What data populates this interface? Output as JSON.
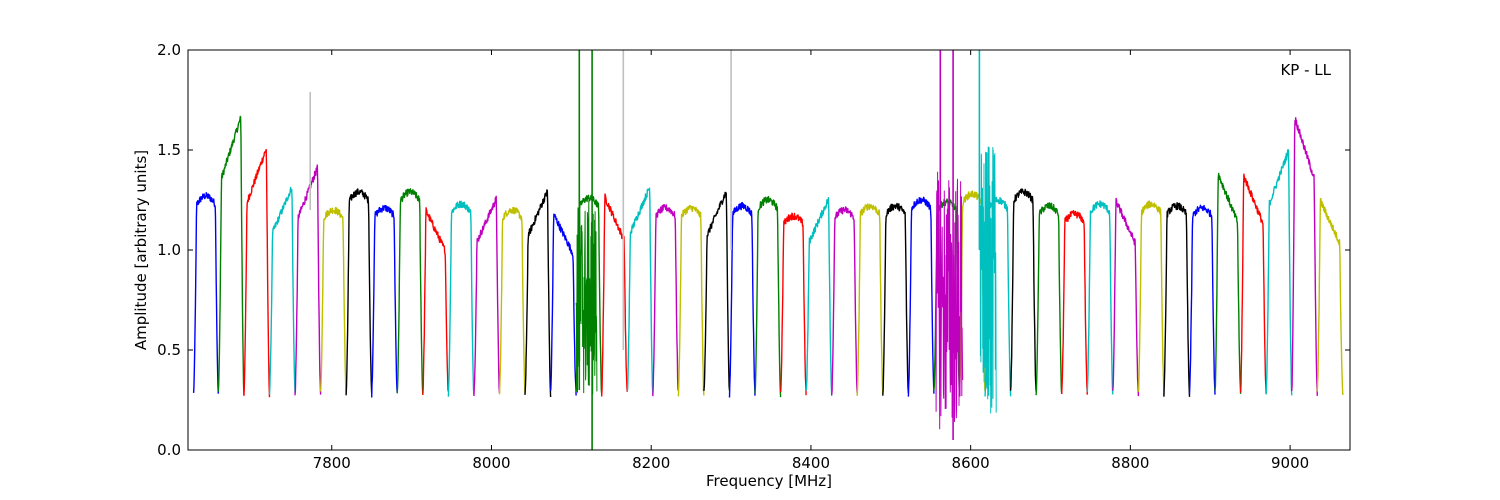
{
  "chart_data": {
    "type": "line",
    "title": "",
    "annotation": "KP - LL",
    "xlabel": "Frequency [MHz]",
    "ylabel": "Amplitude [arbitrary units]",
    "xlim": [
      7620,
      9075
    ],
    "ylim": [
      0.0,
      2.0
    ],
    "xticks": [
      7800,
      8000,
      8200,
      8400,
      8600,
      8800,
      9000
    ],
    "xtick_labels": [
      "7800",
      "8000",
      "8200",
      "8400",
      "8600",
      "8800",
      "9000"
    ],
    "yticks": [
      0.0,
      0.5,
      1.0,
      1.5,
      2.0
    ],
    "ytick_labels": [
      "0.0",
      "0.5",
      "1.0",
      "1.5",
      "2.0"
    ],
    "grid": false,
    "colors": {
      "blue": "#0000ff",
      "green": "#008000",
      "red": "#ff0000",
      "cyan": "#00bfbf",
      "magenta": "#bf00bf",
      "olive": "#bfbf00",
      "black": "#000000",
      "gray": "#bfbfbf"
    },
    "channels": [
      {
        "start": 7627,
        "end": 7658,
        "peak": 1.27,
        "shape": "flat",
        "color": "blue"
      },
      {
        "start": 7658,
        "end": 7690,
        "peak": 1.71,
        "shape": "rise",
        "color": "green"
      },
      {
        "start": 7690,
        "end": 7722,
        "peak": 1.55,
        "shape": "rise",
        "color": "red"
      },
      {
        "start": 7722,
        "end": 7754,
        "peak": 1.35,
        "shape": "rise",
        "color": "cyan"
      },
      {
        "start": 7754,
        "end": 7786,
        "peak": 1.45,
        "shape": "rise",
        "color": "magenta"
      },
      {
        "start": 7786,
        "end": 7818,
        "peak": 1.2,
        "shape": "flat",
        "color": "olive"
      },
      {
        "start": 7818,
        "end": 7850,
        "peak": 1.29,
        "shape": "flat",
        "color": "black"
      },
      {
        "start": 7850,
        "end": 7882,
        "peak": 1.21,
        "shape": "flat",
        "color": "blue"
      },
      {
        "start": 7882,
        "end": 7914,
        "peak": 1.29,
        "shape": "flat",
        "color": "green"
      },
      {
        "start": 7914,
        "end": 7946,
        "peak": 1.23,
        "shape": "fall",
        "color": "red"
      },
      {
        "start": 7946,
        "end": 7978,
        "peak": 1.23,
        "shape": "flat",
        "color": "cyan"
      },
      {
        "start": 7978,
        "end": 8010,
        "peak": 1.29,
        "shape": "rise",
        "color": "magenta"
      },
      {
        "start": 8010,
        "end": 8042,
        "peak": 1.2,
        "shape": "flat",
        "color": "olive"
      },
      {
        "start": 8042,
        "end": 8074,
        "peak": 1.33,
        "shape": "rise",
        "color": "black"
      },
      {
        "start": 8074,
        "end": 8106,
        "peak": 1.21,
        "shape": "fall",
        "color": "blue"
      },
      {
        "start": 8106,
        "end": 8138,
        "peak": 1.26,
        "shape": "flat",
        "color": "green"
      },
      {
        "start": 8138,
        "end": 8170,
        "peak": 1.3,
        "shape": "fall",
        "color": "red"
      },
      {
        "start": 8170,
        "end": 8202,
        "peak": 1.35,
        "shape": "rise",
        "color": "cyan"
      },
      {
        "start": 8202,
        "end": 8234,
        "peak": 1.21,
        "shape": "flat",
        "color": "magenta"
      },
      {
        "start": 8234,
        "end": 8266,
        "peak": 1.21,
        "shape": "flat",
        "color": "olive"
      },
      {
        "start": 8266,
        "end": 8298,
        "peak": 1.33,
        "shape": "rise",
        "color": "black"
      },
      {
        "start": 8298,
        "end": 8330,
        "peak": 1.22,
        "shape": "flat",
        "color": "blue"
      },
      {
        "start": 8330,
        "end": 8362,
        "peak": 1.25,
        "shape": "flat",
        "color": "green"
      },
      {
        "start": 8362,
        "end": 8394,
        "peak": 1.17,
        "shape": "flat",
        "color": "red"
      },
      {
        "start": 8394,
        "end": 8426,
        "peak": 1.29,
        "shape": "rise",
        "color": "cyan"
      },
      {
        "start": 8426,
        "end": 8458,
        "peak": 1.2,
        "shape": "flat",
        "color": "magenta"
      },
      {
        "start": 8458,
        "end": 8490,
        "peak": 1.22,
        "shape": "flat",
        "color": "olive"
      },
      {
        "start": 8490,
        "end": 8522,
        "peak": 1.22,
        "shape": "flat",
        "color": "black"
      },
      {
        "start": 8522,
        "end": 8554,
        "peak": 1.25,
        "shape": "flat",
        "color": "blue"
      },
      {
        "start": 8554,
        "end": 8586,
        "peak": 1.24,
        "shape": "flat",
        "color": "green"
      },
      {
        "start": 8586,
        "end": 8618,
        "peak": 1.28,
        "shape": "flat",
        "color": "olive"
      },
      {
        "start": 8618,
        "end": 8650,
        "peak": 1.25,
        "shape": "flat",
        "color": "cyan"
      },
      {
        "start": 8650,
        "end": 8682,
        "peak": 1.29,
        "shape": "flat",
        "color": "black"
      },
      {
        "start": 8682,
        "end": 8714,
        "peak": 1.22,
        "shape": "flat",
        "color": "green"
      },
      {
        "start": 8714,
        "end": 8746,
        "peak": 1.18,
        "shape": "flat",
        "color": "red"
      },
      {
        "start": 8746,
        "end": 8778,
        "peak": 1.23,
        "shape": "flat",
        "color": "cyan"
      },
      {
        "start": 8778,
        "end": 8810,
        "peak": 1.28,
        "shape": "fall",
        "color": "magenta"
      },
      {
        "start": 8810,
        "end": 8842,
        "peak": 1.23,
        "shape": "flat",
        "color": "olive"
      },
      {
        "start": 8842,
        "end": 8874,
        "peak": 1.22,
        "shape": "flat",
        "color": "black"
      },
      {
        "start": 8874,
        "end": 8906,
        "peak": 1.21,
        "shape": "flat",
        "color": "blue"
      },
      {
        "start": 8906,
        "end": 8938,
        "peak": 1.42,
        "shape": "fall",
        "color": "green"
      },
      {
        "start": 8938,
        "end": 8970,
        "peak": 1.41,
        "shape": "fall",
        "color": "red"
      },
      {
        "start": 8970,
        "end": 9002,
        "peak": 1.54,
        "shape": "rise",
        "color": "cyan"
      },
      {
        "start": 9002,
        "end": 9034,
        "peak": 1.71,
        "shape": "fall",
        "color": "magenta"
      },
      {
        "start": 9034,
        "end": 9066,
        "peak": 1.28,
        "shape": "fall",
        "color": "olive"
      }
    ],
    "spikes": [
      {
        "x": 7773,
        "y_low": 1.2,
        "y_high": 1.79,
        "color": "gray"
      },
      {
        "x": 8110,
        "y_low": 0.3,
        "y_high": 2.0,
        "color": "green"
      },
      {
        "x": 8126,
        "y_low": 0.0,
        "y_high": 2.0,
        "color": "green"
      },
      {
        "x": 8165,
        "y_low": 0.5,
        "y_high": 2.0,
        "color": "gray"
      },
      {
        "x": 8300,
        "y_low": 1.0,
        "y_high": 2.0,
        "color": "gray"
      },
      {
        "x": 8562,
        "y_low": 0.5,
        "y_high": 2.0,
        "color": "magenta"
      },
      {
        "x": 8578,
        "y_low": 0.05,
        "y_high": 2.0,
        "color": "magenta"
      },
      {
        "x": 8611,
        "y_low": 1.0,
        "y_high": 2.0,
        "color": "cyan"
      }
    ],
    "noise_regions": [
      {
        "x_start": 8106,
        "x_end": 8132,
        "y_low": 0.25,
        "y_high": 1.25,
        "color": "green"
      },
      {
        "x_start": 8556,
        "x_end": 8590,
        "y_low": 0.1,
        "y_high": 1.4,
        "color": "magenta"
      },
      {
        "x_start": 8612,
        "x_end": 8632,
        "y_low": 0.18,
        "y_high": 1.52,
        "color": "cyan"
      }
    ]
  }
}
